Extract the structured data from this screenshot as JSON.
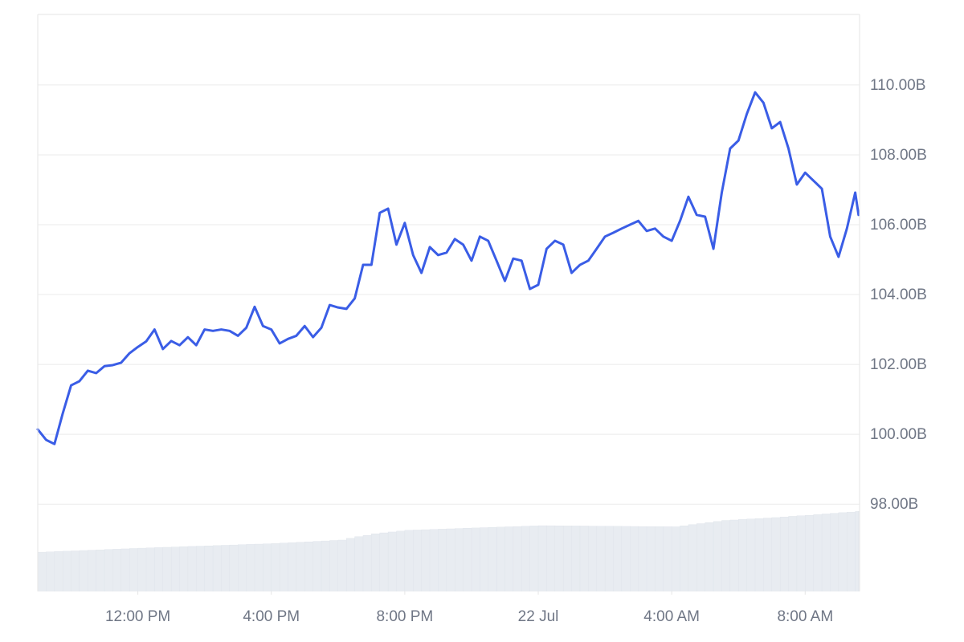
{
  "chart_data": {
    "type": "line",
    "x": [
      9.0,
      9.25,
      9.5,
      9.75,
      10.0,
      10.25,
      10.5,
      10.75,
      11.0,
      11.25,
      11.5,
      11.75,
      12.0,
      12.25,
      12.5,
      12.75,
      13.0,
      13.25,
      13.5,
      13.75,
      14.0,
      14.25,
      14.5,
      14.75,
      15.0,
      15.25,
      15.5,
      15.75,
      16.0,
      16.25,
      16.5,
      16.75,
      17.0,
      17.25,
      17.5,
      17.75,
      18.0,
      18.25,
      18.5,
      18.75,
      19.0,
      19.25,
      19.5,
      19.75,
      20.0,
      20.25,
      20.5,
      20.75,
      21.0,
      21.25,
      21.5,
      21.75,
      22.0,
      22.25,
      22.5,
      22.75,
      23.0,
      23.25,
      23.5,
      23.75,
      24.0,
      24.25,
      24.5,
      24.75,
      25.0,
      25.25,
      25.5,
      25.75,
      26.0,
      26.25,
      26.5,
      26.75,
      27.0,
      27.25,
      27.5,
      27.75,
      28.0,
      28.25,
      28.5,
      28.75,
      29.0,
      29.25,
      29.5,
      29.75,
      30.0,
      30.25,
      30.5,
      30.75,
      31.0,
      31.25,
      31.5,
      31.75,
      32.0,
      32.25,
      32.5,
      32.75,
      33.0,
      33.25,
      33.5,
      33.6
    ],
    "series": [
      {
        "color": "#3a5de6",
        "values": [
          100.14,
          99.84,
          99.72,
          100.6,
          101.4,
          101.52,
          101.82,
          101.75,
          101.95,
          101.98,
          102.05,
          102.32,
          102.5,
          102.66,
          103.0,
          102.44,
          102.67,
          102.55,
          102.78,
          102.55,
          103.0,
          102.96,
          103.0,
          102.96,
          102.82,
          103.05,
          103.65,
          103.1,
          103.0,
          102.6,
          102.73,
          102.82,
          103.1,
          102.78,
          103.05,
          103.7,
          103.63,
          103.59,
          103.89,
          104.85,
          104.85,
          106.34,
          106.46,
          105.43,
          106.05,
          105.13,
          104.62,
          105.36,
          105.13,
          105.2,
          105.59,
          105.43,
          104.97,
          105.66,
          105.54,
          104.97,
          104.39,
          105.03,
          104.97,
          104.16,
          104.28,
          105.31,
          105.54,
          105.43,
          104.62,
          104.85,
          104.97,
          105.31,
          105.66,
          105.77,
          105.89,
          106.0,
          106.11,
          105.82,
          105.89,
          105.66,
          105.54,
          106.11,
          106.8,
          106.28,
          106.23,
          105.31,
          106.92,
          108.18,
          108.41,
          109.17,
          109.79,
          109.49,
          108.76,
          108.94,
          108.18,
          107.15,
          107.49,
          107.26,
          107.03,
          105.66,
          105.08,
          105.89,
          106.92,
          106.28
        ]
      },
      {
        "color": "#e8ecf1",
        "axis": "y2",
        "values": [
          6.8,
          6.86,
          6.92,
          6.97,
          7.03,
          7.09,
          7.15,
          7.21,
          7.27,
          7.32,
          7.38,
          7.44,
          7.5,
          7.55,
          7.6,
          7.65,
          7.7,
          7.75,
          7.8,
          7.85,
          7.9,
          7.95,
          8.0,
          8.05,
          8.1,
          8.15,
          8.2,
          8.25,
          8.3,
          8.38,
          8.45,
          8.53,
          8.6,
          8.68,
          8.75,
          8.83,
          8.9,
          9.2,
          9.5,
          9.7,
          10.0,
          10.15,
          10.3,
          10.45,
          10.6,
          10.65,
          10.7,
          10.75,
          10.8,
          10.85,
          10.9,
          10.95,
          11.0,
          11.05,
          11.1,
          11.15,
          11.2,
          11.25,
          11.3,
          11.35,
          11.4,
          11.39,
          11.37,
          11.36,
          11.35,
          11.34,
          11.32,
          11.31,
          11.3,
          11.29,
          11.27,
          11.26,
          11.25,
          11.24,
          11.22,
          11.21,
          11.2,
          11.38,
          11.57,
          11.75,
          11.93,
          12.12,
          12.3,
          12.38,
          12.47,
          12.55,
          12.63,
          12.72,
          12.8,
          12.91,
          13.01,
          13.12,
          13.18,
          13.33,
          13.43,
          13.54,
          13.65,
          13.75,
          13.86,
          13.9
        ]
      }
    ],
    "xlim": [
      9.0,
      33.63
    ],
    "xticks": [
      {
        "value": 12,
        "label": "12:00 PM"
      },
      {
        "value": 16,
        "label": "4:00 PM"
      },
      {
        "value": 20,
        "label": "8:00 PM"
      },
      {
        "value": 24,
        "label": "22 Jul"
      },
      {
        "value": 28,
        "label": "4:00 AM"
      },
      {
        "value": 32,
        "label": "8:00 AM"
      }
    ],
    "ylim": [
      95.5,
      112.02
    ],
    "yticks": [
      {
        "value": 98,
        "label": "98.00B"
      },
      {
        "value": 100,
        "label": "100.00B"
      },
      {
        "value": 102,
        "label": "102.00B"
      },
      {
        "value": 104,
        "label": "104.00B"
      },
      {
        "value": 106,
        "label": "106.00B"
      },
      {
        "value": 108,
        "label": "108.00B"
      },
      {
        "value": 110,
        "label": "110.00B"
      }
    ],
    "y2lim": [
      0,
      100
    ],
    "grid": true
  }
}
